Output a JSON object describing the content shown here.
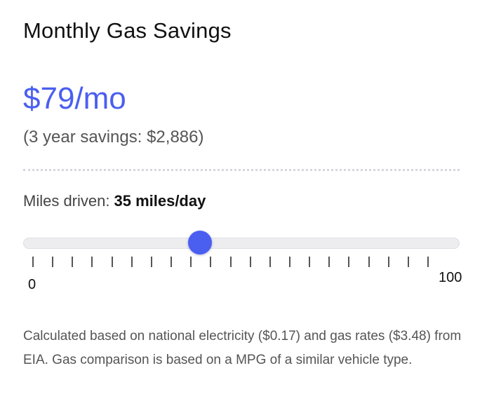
{
  "title": "Monthly Gas Savings",
  "savings": {
    "monthly": "$79/mo",
    "total": "(3 year savings: $2,886)"
  },
  "miles": {
    "label": "Miles driven:",
    "value": "35 miles/day"
  },
  "slider": {
    "min": 0,
    "max": 100,
    "value": 35,
    "min_label": "0",
    "max_label": "100",
    "tick_count": 21
  },
  "footnote": "Calculated based on national electricity ($0.17) and gas rates ($3.48) from EIA. Gas comparison is based on a MPG of a similar vehicle type.",
  "colors": {
    "accent": "#4a5ef0",
    "track": "#ededf0",
    "text_muted": "#555555"
  }
}
